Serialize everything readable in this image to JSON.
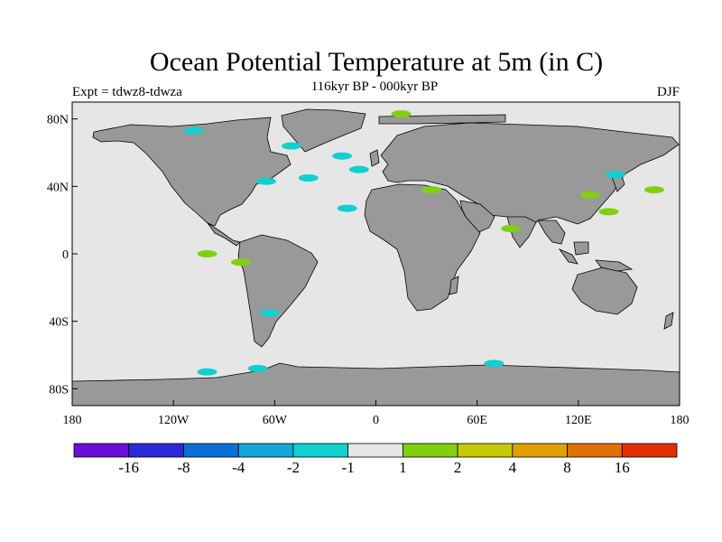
{
  "plot": {
    "title": "Ocean Potential Temperature at 5m (in C)",
    "experiment": "Expt = tdwz8-tdwza",
    "period": "116kyr BP - 000kyr BP",
    "season": "DJF"
  },
  "colors": {
    "ocean": "#e6e6e6",
    "land": "#999999"
  },
  "axes": {
    "x_ticks": [
      {
        "lon": -180,
        "label": "180"
      },
      {
        "lon": -120,
        "label": "120W"
      },
      {
        "lon": -60,
        "label": "60W"
      },
      {
        "lon": 0,
        "label": "0"
      },
      {
        "lon": 60,
        "label": "60E"
      },
      {
        "lon": 120,
        "label": "120E"
      },
      {
        "lon": 180,
        "label": "180"
      }
    ],
    "y_ticks": [
      {
        "lat": 80,
        "label": "80N"
      },
      {
        "lat": 40,
        "label": "40N"
      },
      {
        "lat": 0,
        "label": "0"
      },
      {
        "lat": -40,
        "label": "40S"
      },
      {
        "lat": -80,
        "label": "80S"
      }
    ],
    "lon_range": [
      -180,
      180
    ],
    "lat_range": [
      -90,
      90
    ]
  },
  "colorbar": {
    "bins": [
      {
        "color": "#6a10d6"
      },
      {
        "color": "#2a2ad8"
      },
      {
        "color": "#0a70d8"
      },
      {
        "color": "#10a8d8"
      },
      {
        "color": "#10d0d0"
      },
      {
        "color": "#e6e6e6"
      },
      {
        "color": "#80d010"
      },
      {
        "color": "#c8c800"
      },
      {
        "color": "#e0a000"
      },
      {
        "color": "#e07000"
      },
      {
        "color": "#e03000"
      }
    ],
    "labels": [
      "-16",
      "-8",
      "-4",
      "-2",
      "-1",
      "1",
      "2",
      "4",
      "8",
      "16"
    ]
  },
  "anomalies": [
    {
      "category": "-1 to -2",
      "color": "#10d0d0",
      "lon": -50,
      "lat": 64
    },
    {
      "category": "-1 to -2",
      "color": "#10d0d0",
      "lon": -20,
      "lat": 58
    },
    {
      "category": "-1 to -2",
      "color": "#10d0d0",
      "lon": -10,
      "lat": 50
    },
    {
      "category": "-1 to -2",
      "color": "#10d0d0",
      "lon": -40,
      "lat": 45
    },
    {
      "category": "-1 to -2",
      "color": "#10d0d0",
      "lon": -65,
      "lat": 43
    },
    {
      "category": "-1 to -2",
      "color": "#10d0d0",
      "lon": -17,
      "lat": 27
    },
    {
      "category": "-1 to -2",
      "color": "#10d0d0",
      "lon": -63,
      "lat": -35
    },
    {
      "category": "-1 to -2",
      "color": "#10d0d0",
      "lon": -100,
      "lat": -70
    },
    {
      "category": "-1 to -2",
      "color": "#10d0d0",
      "lon": -70,
      "lat": -68
    },
    {
      "category": "-1 to -2",
      "color": "#10d0d0",
      "lon": 70,
      "lat": -65
    },
    {
      "category": "-1 to -2",
      "color": "#10d0d0",
      "lon": -108,
      "lat": 73
    },
    {
      "category": "-1 to -2",
      "color": "#10d0d0",
      "lon": 142,
      "lat": 47
    },
    {
      "category": "1 to 2",
      "color": "#80d010",
      "lon": 15,
      "lat": 83
    },
    {
      "category": "1 to 2",
      "color": "#80d010",
      "lon": 138,
      "lat": 25
    },
    {
      "category": "1 to 2",
      "color": "#80d010",
      "lon": 165,
      "lat": 38
    },
    {
      "category": "1 to 2",
      "color": "#80d010",
      "lon": 80,
      "lat": 15
    },
    {
      "category": "1 to 2",
      "color": "#80d010",
      "lon": -100,
      "lat": 0
    },
    {
      "category": "1 to 2",
      "color": "#80d010",
      "lon": -80,
      "lat": -5
    },
    {
      "category": "1 to 2",
      "color": "#80d010",
      "lon": 33,
      "lat": 38
    },
    {
      "category": "1 to 2",
      "color": "#80d010",
      "lon": 127,
      "lat": 35
    }
  ]
}
